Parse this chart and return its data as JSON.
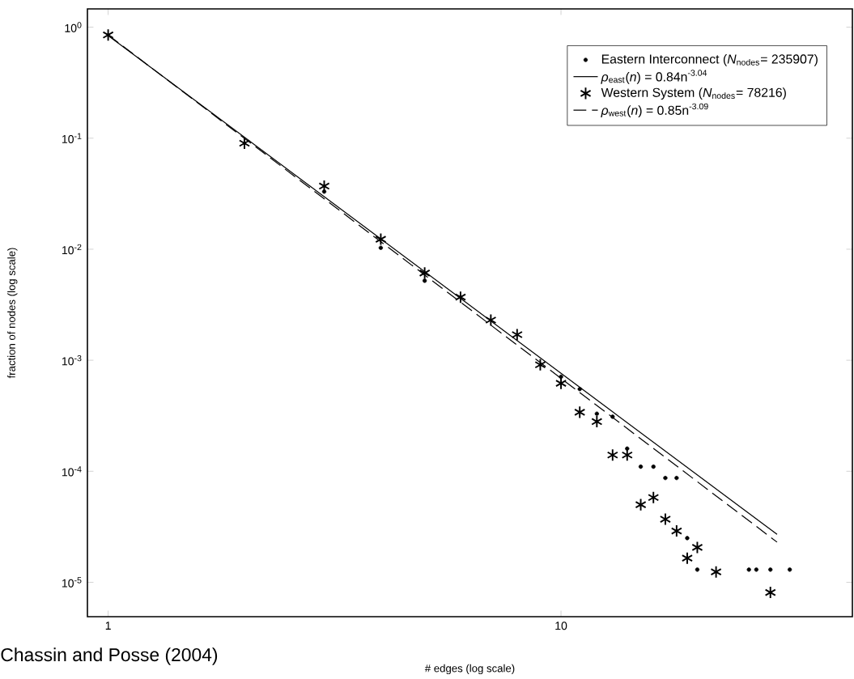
{
  "chart_data": {
    "type": "scatter",
    "log": "xy",
    "xlabel": "# edges (log scale)",
    "ylabel": "fraction of nodes (log scale)",
    "xlim": [
      0.9,
      44
    ],
    "ylim": [
      4.9e-06,
      1.46
    ],
    "xticks": [
      1,
      10
    ],
    "yticks": [
      {
        "value": 1,
        "label": "10$^{0}$"
      },
      {
        "value": 0.1,
        "label": "10$^{-1}$"
      },
      {
        "value": 0.01,
        "label": "10$^{-2}$"
      },
      {
        "value": 0.001,
        "label": "10$^{-3}$"
      },
      {
        "value": 0.0001,
        "label": "10$^{-4}$"
      },
      {
        "value": 1e-05,
        "label": "10$^{-5}$"
      }
    ],
    "legend": "top right",
    "annotations": [
      "Chassin and Posse (2004)"
    ],
    "series": [
      {
        "name": "Eastern Interconnect (*N*$_{nodes}$= 235907)",
        "marker": "circle",
        "color": "#000000",
        "x": [
          3,
          4,
          5,
          10,
          11,
          12,
          13,
          14,
          15,
          16,
          17,
          18,
          19,
          20,
          26,
          27,
          29,
          32
        ],
        "values": [
          0.033,
          0.0103,
          0.0052,
          0.00071,
          0.00055,
          0.00033,
          0.00031,
          0.00016,
          0.00011,
          0.00011,
          8.7e-05,
          8.7e-05,
          2.5e-05,
          1.3e-05,
          1.3e-05,
          1.3e-05,
          1.3e-05,
          1.3e-05
        ]
      },
      {
        "name": "*ρ*$_{east}$(*n*) = 0.84n$^{-3.04}$",
        "type": "line",
        "line_style": "solid",
        "marker": "none",
        "color": "#000000",
        "x": [
          1,
          30
        ],
        "values": [
          0.84,
          2.7e-05
        ]
      },
      {
        "name": "Western System  (*N*$_{nodes}$= 78216)",
        "marker": "cross",
        "color": "#000000",
        "x": [
          1,
          2,
          3,
          4,
          5,
          6,
          7,
          8,
          9,
          10,
          11,
          12,
          13,
          14,
          15,
          16,
          17,
          18,
          19,
          20,
          22,
          29
        ],
        "values": [
          0.85,
          0.09,
          0.037,
          0.0123,
          0.0061,
          0.0037,
          0.0023,
          0.0017,
          0.00091,
          0.00062,
          0.00034,
          0.00028,
          0.00014,
          0.00014,
          5e-05,
          5.8e-05,
          3.7e-05,
          2.9e-05,
          1.65e-05,
          2.06e-05,
          1.24e-05,
          8.1e-06
        ]
      },
      {
        "name": "*ρ*$_{west}$(*n*) = 0.85n$^{-3.09}$",
        "type": "line",
        "line_style": "dashed",
        "marker": "none",
        "color": "#000000",
        "x": [
          1,
          30
        ],
        "values": [
          0.85,
          2.3e-05
        ]
      }
    ]
  }
}
